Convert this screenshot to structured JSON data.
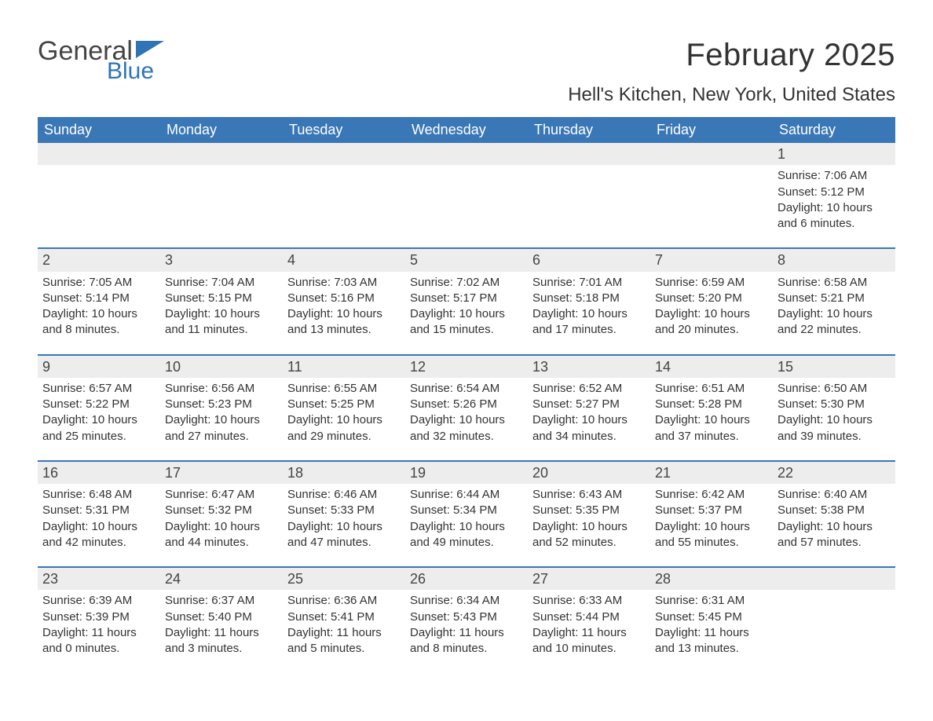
{
  "logo": {
    "text1": "General",
    "text2": "Blue",
    "pennant_color": "#2f74b5"
  },
  "title": "February 2025",
  "location": "Hell's Kitchen, New York, United States",
  "colors": {
    "header_bg": "#3a77b7",
    "header_fg": "#ffffff",
    "daynum_bg": "#ededed",
    "week_border": "#3a77b7",
    "text": "#333333"
  },
  "daysOfWeek": [
    "Sunday",
    "Monday",
    "Tuesday",
    "Wednesday",
    "Thursday",
    "Friday",
    "Saturday"
  ],
  "weeks": [
    [
      {
        "n": ""
      },
      {
        "n": ""
      },
      {
        "n": ""
      },
      {
        "n": ""
      },
      {
        "n": ""
      },
      {
        "n": ""
      },
      {
        "n": "1",
        "sunrise": "7:06 AM",
        "sunset": "5:12 PM",
        "daylight": "10 hours and 6 minutes."
      }
    ],
    [
      {
        "n": "2",
        "sunrise": "7:05 AM",
        "sunset": "5:14 PM",
        "daylight": "10 hours and 8 minutes."
      },
      {
        "n": "3",
        "sunrise": "7:04 AM",
        "sunset": "5:15 PM",
        "daylight": "10 hours and 11 minutes."
      },
      {
        "n": "4",
        "sunrise": "7:03 AM",
        "sunset": "5:16 PM",
        "daylight": "10 hours and 13 minutes."
      },
      {
        "n": "5",
        "sunrise": "7:02 AM",
        "sunset": "5:17 PM",
        "daylight": "10 hours and 15 minutes."
      },
      {
        "n": "6",
        "sunrise": "7:01 AM",
        "sunset": "5:18 PM",
        "daylight": "10 hours and 17 minutes."
      },
      {
        "n": "7",
        "sunrise": "6:59 AM",
        "sunset": "5:20 PM",
        "daylight": "10 hours and 20 minutes."
      },
      {
        "n": "8",
        "sunrise": "6:58 AM",
        "sunset": "5:21 PM",
        "daylight": "10 hours and 22 minutes."
      }
    ],
    [
      {
        "n": "9",
        "sunrise": "6:57 AM",
        "sunset": "5:22 PM",
        "daylight": "10 hours and 25 minutes."
      },
      {
        "n": "10",
        "sunrise": "6:56 AM",
        "sunset": "5:23 PM",
        "daylight": "10 hours and 27 minutes."
      },
      {
        "n": "11",
        "sunrise": "6:55 AM",
        "sunset": "5:25 PM",
        "daylight": "10 hours and 29 minutes."
      },
      {
        "n": "12",
        "sunrise": "6:54 AM",
        "sunset": "5:26 PM",
        "daylight": "10 hours and 32 minutes."
      },
      {
        "n": "13",
        "sunrise": "6:52 AM",
        "sunset": "5:27 PM",
        "daylight": "10 hours and 34 minutes."
      },
      {
        "n": "14",
        "sunrise": "6:51 AM",
        "sunset": "5:28 PM",
        "daylight": "10 hours and 37 minutes."
      },
      {
        "n": "15",
        "sunrise": "6:50 AM",
        "sunset": "5:30 PM",
        "daylight": "10 hours and 39 minutes."
      }
    ],
    [
      {
        "n": "16",
        "sunrise": "6:48 AM",
        "sunset": "5:31 PM",
        "daylight": "10 hours and 42 minutes."
      },
      {
        "n": "17",
        "sunrise": "6:47 AM",
        "sunset": "5:32 PM",
        "daylight": "10 hours and 44 minutes."
      },
      {
        "n": "18",
        "sunrise": "6:46 AM",
        "sunset": "5:33 PM",
        "daylight": "10 hours and 47 minutes."
      },
      {
        "n": "19",
        "sunrise": "6:44 AM",
        "sunset": "5:34 PM",
        "daylight": "10 hours and 49 minutes."
      },
      {
        "n": "20",
        "sunrise": "6:43 AM",
        "sunset": "5:35 PM",
        "daylight": "10 hours and 52 minutes."
      },
      {
        "n": "21",
        "sunrise": "6:42 AM",
        "sunset": "5:37 PM",
        "daylight": "10 hours and 55 minutes."
      },
      {
        "n": "22",
        "sunrise": "6:40 AM",
        "sunset": "5:38 PM",
        "daylight": "10 hours and 57 minutes."
      }
    ],
    [
      {
        "n": "23",
        "sunrise": "6:39 AM",
        "sunset": "5:39 PM",
        "daylight": "11 hours and 0 minutes."
      },
      {
        "n": "24",
        "sunrise": "6:37 AM",
        "sunset": "5:40 PM",
        "daylight": "11 hours and 3 minutes."
      },
      {
        "n": "25",
        "sunrise": "6:36 AM",
        "sunset": "5:41 PM",
        "daylight": "11 hours and 5 minutes."
      },
      {
        "n": "26",
        "sunrise": "6:34 AM",
        "sunset": "5:43 PM",
        "daylight": "11 hours and 8 minutes."
      },
      {
        "n": "27",
        "sunrise": "6:33 AM",
        "sunset": "5:44 PM",
        "daylight": "11 hours and 10 minutes."
      },
      {
        "n": "28",
        "sunrise": "6:31 AM",
        "sunset": "5:45 PM",
        "daylight": "11 hours and 13 minutes."
      },
      {
        "n": ""
      }
    ]
  ],
  "labels": {
    "sunrise": "Sunrise: ",
    "sunset": "Sunset: ",
    "daylight": "Daylight: "
  }
}
